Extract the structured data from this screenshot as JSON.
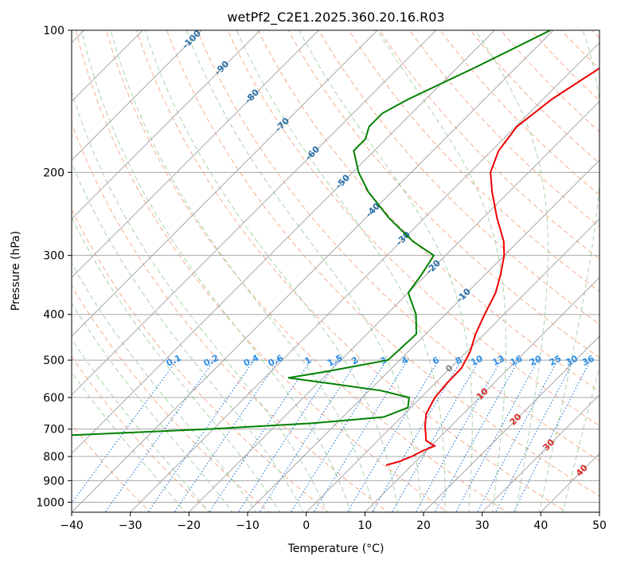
{
  "chart_data": {
    "type": "line",
    "chart_kind": "skew-T log-P diagram",
    "title": "wetPf2_C2E1.2025.360.20.16.R03",
    "xlabel": "Temperature (°C)",
    "ylabel": "Pressure (hPa)",
    "xlim": [
      -40,
      50
    ],
    "ylim": [
      1050,
      100
    ],
    "x_ticks": [
      -40,
      -30,
      -20,
      -10,
      0,
      10,
      20,
      30,
      40,
      50
    ],
    "x_tick_labels": [
      "−40",
      "−30",
      "−20",
      "−10",
      "0",
      "10",
      "20",
      "30",
      "40",
      "50"
    ],
    "y_ticks": [
      100,
      200,
      300,
      400,
      500,
      600,
      700,
      800,
      900,
      1000
    ],
    "y_tick_labels": [
      "100",
      "200",
      "300",
      "400",
      "500",
      "600",
      "700",
      "800",
      "900",
      "1000"
    ],
    "grid": true,
    "colors": {
      "temperature": "#ee0000",
      "dewpoint": "#008000",
      "isotherm": "#a8a8a8",
      "dry_adiabat": "#f5ad8c",
      "moist_adiabat": "#a6d4a6",
      "mixing_ratio": "#1f77d4",
      "isotherm_label": "#2a6fa8",
      "mixing_label": "#2b8ee6",
      "adiabat_label": "#d62728",
      "zero_label": "#7f7f7f"
    },
    "series": [
      {
        "name": "Temperature",
        "pressure": [
          100,
          120,
          140,
          160,
          180,
          200,
          220,
          250,
          280,
          300,
          330,
          360,
          400,
          440,
          480,
          520,
          560,
          600,
          650,
          690,
          720,
          740,
          760,
          780,
          800,
          820,
          835
        ],
        "values": [
          -23.5,
          -25.6,
          -28.5,
          -29.8,
          -28.8,
          -26.5,
          -22.9,
          -17.6,
          -12.5,
          -10.0,
          -7.3,
          -5.1,
          -3.3,
          -1.5,
          0.6,
          1.9,
          2.0,
          2.4,
          3.7,
          5.6,
          7.2,
          8.2,
          10.6,
          9.3,
          8.5,
          7.2,
          5.6
        ]
      },
      {
        "name": "Dewpoint",
        "pressure": [
          100,
          120,
          140,
          150,
          160,
          170,
          180,
          200,
          220,
          250,
          280,
          300,
          330,
          360,
          400,
          440,
          470,
          500,
          530,
          545,
          560,
          580,
          600,
          630,
          660,
          680,
          700,
          720,
          740,
          760,
          790,
          810,
          830
        ],
        "values": [
          -40.5,
          -47.0,
          -53.0,
          -55.0,
          -55.0,
          -53.5,
          -53.5,
          -49.0,
          -44.0,
          -36.0,
          -28.0,
          -22.0,
          -20.8,
          -20.0,
          -15.0,
          -11.6,
          -11.8,
          -12.0,
          -21.0,
          -26.0,
          -18.0,
          -8.0,
          -2.0,
          -0.5,
          -3.0,
          -14.0,
          -31.0,
          -52.0,
          -76.0,
          -65.0,
          -73.0,
          -73.0,
          -66.0
        ]
      }
    ],
    "isotherm_labels": [
      "-100",
      "-90",
      "-80",
      "-70",
      "-60",
      "-50",
      "-40",
      "-30",
      "-20",
      "-10",
      "0",
      "10",
      "20",
      "30",
      "40"
    ],
    "isotherm_label_values": [
      -100,
      -90,
      -80,
      -70,
      -60,
      -50,
      -40,
      -30,
      -20,
      -10,
      0,
      10,
      20,
      30,
      40
    ],
    "mixing_ratio_labels": [
      "0.1",
      "0.2",
      "0.4",
      "0.6",
      "1",
      "1.5",
      "2",
      "3",
      "4",
      "6",
      "8",
      "10",
      "13",
      "16",
      "20",
      "25",
      "30",
      "36"
    ],
    "mixing_ratio_values_gkg": [
      0.1,
      0.2,
      0.4,
      0.6,
      1,
      1.5,
      2,
      3,
      4,
      6,
      8,
      10,
      13,
      16,
      20,
      25,
      30,
      36
    ]
  }
}
